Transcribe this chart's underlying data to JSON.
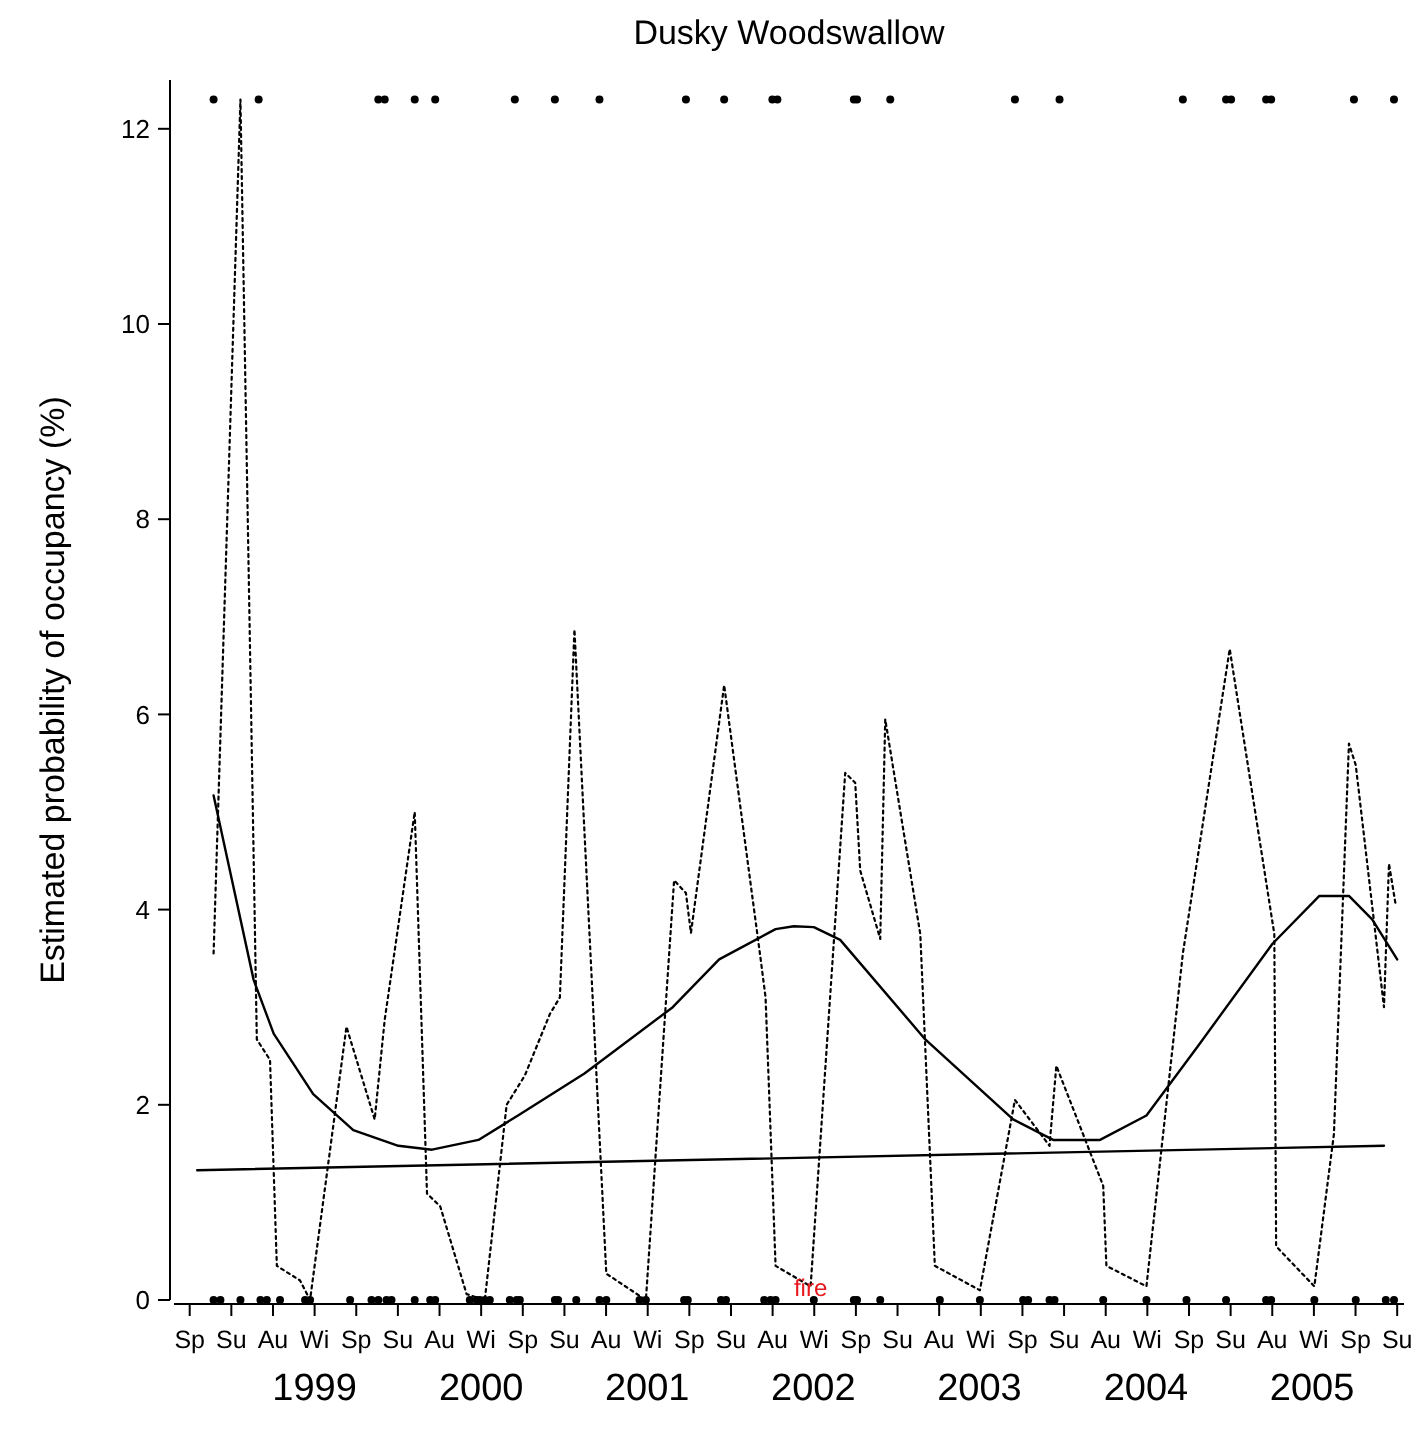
{
  "chart_data": {
    "type": "line",
    "title": "Dusky Woodswallow",
    "ylabel": "Estimated probability of occupancy (%)",
    "xlim": [
      "1998-09-09",
      "2006-02-02"
    ],
    "ylim": [
      0,
      12.5
    ],
    "xticks": [
      {
        "value": "1999-07-15",
        "label": "1999"
      },
      {
        "value": "2000-07-15",
        "label": "2000"
      },
      {
        "value": "2001-07-15",
        "label": "2001"
      },
      {
        "value": "2002-07-15",
        "label": "2002"
      },
      {
        "value": "2003-07-15",
        "label": "2003"
      },
      {
        "value": "2004-07-15",
        "label": "2004"
      },
      {
        "value": "2005-07-15",
        "label": "2005"
      }
    ],
    "yticks": [
      0,
      2,
      4,
      6,
      8,
      10,
      12
    ],
    "grid": false,
    "legend": false,
    "annotations": [
      {
        "text": "fire",
        "x": "2002-07-09",
        "y": 0
      },
      "Sp",
      "Su",
      "Au",
      "Wi",
      "Sp",
      "Su",
      "Au",
      "Wi",
      "Sp",
      "Su",
      "Au",
      "Wi",
      "Sp",
      "Su",
      "Au",
      "Wi",
      "Sp",
      "Su",
      "Au",
      "Wi",
      "Sp",
      "Su",
      "Au",
      "Wi",
      "Sp",
      "Su",
      "Au",
      "Wi",
      "Sp",
      "Su"
    ],
    "series": [
      {
        "type": "line",
        "color": "#000000",
        "line_style": "dotted",
        "marker": "none",
        "x": [
          "1998-12-05",
          "1999-02-02",
          "1999-03-10",
          "1999-04-08",
          "1999-04-23",
          "1999-06-13",
          "1999-07-05",
          "1999-09-23",
          "1999-11-24",
          "1999-12-16",
          "2000-02-20",
          "2000-03-18",
          "2000-04-16",
          "2000-06-13",
          "2000-07-23",
          "2000-09-09",
          "2000-10-19",
          "2000-12-13",
          "2001-01-04",
          "2001-02-05",
          "2001-04-16",
          "2001-07-12",
          "2001-09-12",
          "2001-10-08",
          "2001-10-19",
          "2001-12-31",
          "2002-03-21",
          "2002-04-01",
          "2002-04-23",
          "2002-07-09",
          "2002-09-23",
          "2002-10-15",
          "2002-10-26",
          "2002-12-09",
          "2002-12-20",
          "2003-03-07",
          "2003-04-08",
          "2003-07-16",
          "2003-10-01",
          "2003-12-16",
          "2003-12-31",
          "2004-04-12",
          "2004-04-19",
          "2004-07-16",
          "2004-10-04",
          "2005-01-15",
          "2005-04-23",
          "2005-04-27",
          "2005-07-20",
          "2005-09-01",
          "2005-10-04",
          "2005-10-19",
          "2005-12-20",
          "2005-12-31",
          "2006-01-15"
        ],
        "values": [
          3.55,
          12.3,
          2.67,
          2.46,
          0.35,
          0.2,
          0,
          2.8,
          1.85,
          2.87,
          5.0,
          1.09,
          0.96,
          0.06,
          0,
          2.0,
          2.3,
          2.93,
          3.1,
          6.87,
          0.27,
          0,
          4.3,
          4.17,
          3.76,
          6.3,
          3.5,
          3.1,
          0.35,
          0.14,
          5.4,
          5.3,
          4.4,
          3.7,
          5.95,
          3.75,
          0.35,
          0.1,
          2.05,
          1.58,
          2.4,
          1.17,
          0.35,
          0.14,
          3.55,
          6.67,
          3.75,
          0.55,
          0.14,
          1.7,
          5.7,
          5.48,
          3.0,
          4.47,
          4.04
        ]
      },
      {
        "type": "line",
        "color": "#000000",
        "line_style": "solid",
        "marker": "none",
        "x": [
          "1998-12-05",
          "1999-03-03",
          "1999-04-16",
          "1999-07-12",
          "1999-10-08",
          "2000-01-15",
          "2000-03-29",
          "2000-07-09",
          "2000-10-04",
          "2001-02-27",
          "2001-09-09",
          "2001-12-20",
          "2002-04-23",
          "2002-06-02",
          "2002-07-16",
          "2002-09-12",
          "2003-03-18",
          "2003-09-27",
          "2003-12-24",
          "2004-04-05",
          "2004-07-16",
          "2004-11-06",
          "2005-04-19",
          "2005-07-31",
          "2005-10-04",
          "2005-11-24",
          "2006-01-18"
        ],
        "values": [
          5.17,
          3.28,
          2.73,
          2.11,
          1.74,
          1.58,
          1.54,
          1.64,
          1.89,
          2.32,
          3.0,
          3.49,
          3.8,
          3.83,
          3.82,
          3.69,
          2.67,
          1.85,
          1.64,
          1.64,
          1.89,
          2.6,
          3.65,
          4.14,
          4.14,
          3.9,
          3.49
        ]
      },
      {
        "type": "line",
        "color": "#000000",
        "line_style": "solid",
        "marker": "none",
        "x": [
          "1998-10-30",
          "2005-12-20"
        ],
        "values": [
          1.33,
          1.58
        ]
      },
      {
        "type": "scatter",
        "color": "#000000",
        "marker": "circle",
        "x": [
          "1998-12-05",
          "1999-03-14",
          "1999-12-02",
          "1999-12-16",
          "2000-02-20",
          "2000-04-05",
          "2000-09-27",
          "2000-12-24",
          "2001-04-01",
          "2001-10-08",
          "2001-12-31",
          "2002-04-16",
          "2002-04-27",
          "2002-10-12",
          "2002-10-19",
          "2002-12-31",
          "2003-10-01",
          "2004-01-07",
          "2004-10-04",
          "2005-01-07",
          "2005-01-18",
          "2005-04-05",
          "2005-04-16",
          "2005-10-15",
          "2006-01-11"
        ],
        "values": [
          12.3,
          12.3,
          12.3,
          12.3,
          12.3,
          12.3,
          12.3,
          12.3,
          12.3,
          12.3,
          12.3,
          12.3,
          12.3,
          12.3,
          12.3,
          12.3,
          12.3,
          12.3,
          12.3,
          12.3,
          12.3,
          12.3,
          12.3,
          12.3,
          12.3
        ]
      },
      {
        "type": "scatter",
        "color": "#000000",
        "marker": "circle",
        "x": [
          "1998-12-05",
          "1998-12-20",
          "1999-02-02",
          "1999-03-18",
          "1999-04-01",
          "1999-04-30",
          "1999-06-24",
          "1999-07-05",
          "1999-10-01",
          "1999-11-17",
          "1999-12-02",
          "1999-12-20",
          "1999-12-31",
          "2000-02-20",
          "2000-03-25",
          "2000-04-05",
          "2000-06-20",
          "2000-07-05",
          "2000-07-12",
          "2000-07-23",
          "2000-08-03",
          "2000-09-16",
          "2000-10-01",
          "2000-10-08",
          "2000-12-24",
          "2000-12-31",
          "2001-02-09",
          "2001-04-01",
          "2001-04-16",
          "2001-06-28",
          "2001-07-12",
          "2001-10-04",
          "2001-10-12",
          "2001-12-24",
          "2002-01-04",
          "2002-03-29",
          "2002-04-12",
          "2002-04-23",
          "2002-07-16",
          "2002-10-12",
          "2002-10-19",
          "2002-12-09",
          "2003-04-19",
          "2003-07-16",
          "2003-10-19",
          "2003-10-30",
          "2003-12-16",
          "2003-12-27",
          "2004-04-12",
          "2004-07-16",
          "2004-10-12",
          "2005-01-07",
          "2005-04-05",
          "2005-04-16",
          "2005-07-20",
          "2005-10-19",
          "2005-12-24",
          "2006-01-11"
        ],
        "values": [
          0,
          0,
          0,
          0,
          0,
          0,
          0,
          0,
          0,
          0,
          0,
          0,
          0,
          0,
          0,
          0,
          0,
          0,
          0,
          0,
          0,
          0,
          0,
          0,
          0,
          0,
          0,
          0,
          0,
          0,
          0,
          0,
          0,
          0,
          0,
          0,
          0,
          0,
          0,
          0,
          0,
          0,
          0,
          0,
          0,
          0,
          0,
          0,
          0,
          0,
          0,
          0,
          0,
          0,
          0,
          0,
          0,
          0
        ]
      }
    ]
  }
}
